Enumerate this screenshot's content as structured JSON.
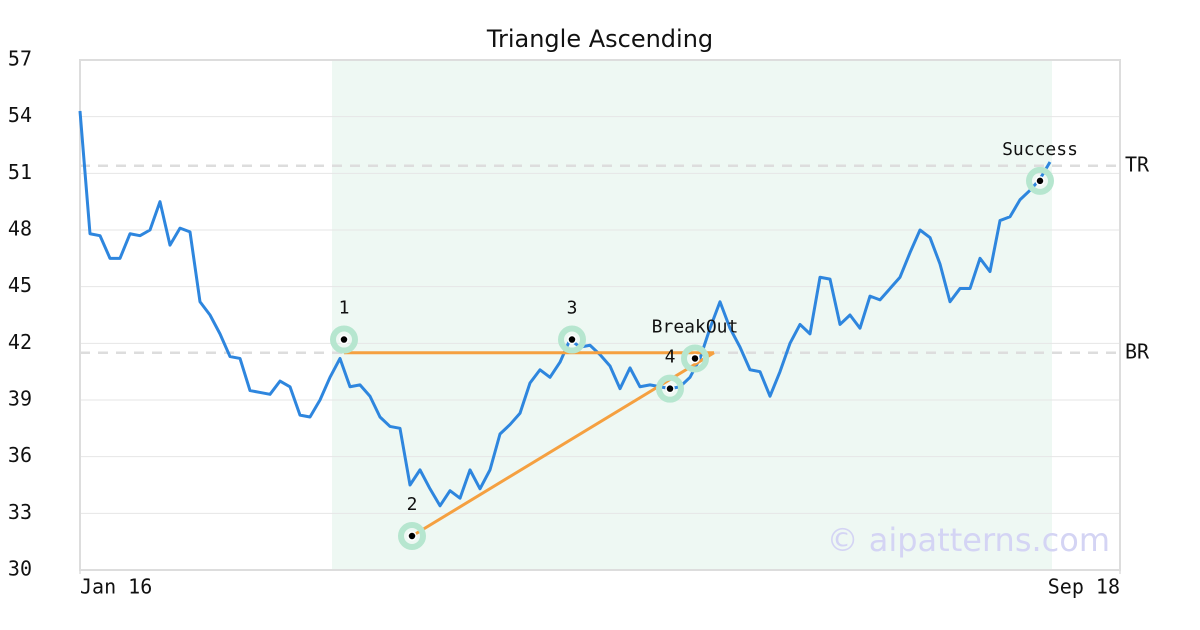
{
  "chart_data": {
    "type": "line",
    "title": "Triangle Ascending",
    "watermark": "© aipatterns.com",
    "series": [
      {
        "color": "#2e86de",
        "values": [
          54.3,
          47.8,
          47.7,
          46.5,
          46.5,
          47.8,
          47.7,
          48.0,
          49.5,
          47.2,
          48.1,
          47.9,
          44.2,
          43.5,
          42.5,
          41.3,
          41.2,
          39.5,
          39.4,
          39.3,
          40.0,
          39.7,
          38.2,
          38.1,
          39.0,
          40.2,
          41.2,
          39.7,
          39.8,
          39.2,
          38.1,
          37.6,
          37.5,
          34.5,
          35.3,
          34.3,
          33.4,
          34.2,
          33.8,
          35.3,
          34.3,
          35.3,
          37.2,
          37.7,
          38.3,
          39.9,
          40.6,
          40.2,
          41.0,
          42.2,
          41.8,
          41.9,
          41.4,
          40.8,
          39.6,
          40.7,
          39.7,
          39.8,
          39.7,
          39.6,
          39.7,
          40.2,
          41.2,
          42.8,
          44.2,
          42.8,
          41.8,
          40.6,
          40.5,
          39.2,
          40.5,
          42.0,
          43.0,
          42.5,
          45.5,
          45.4,
          43.0,
          43.5,
          42.8,
          44.5,
          44.3,
          44.9,
          45.5,
          46.8,
          48.0,
          47.6,
          46.2,
          44.2,
          44.9,
          44.9,
          46.5,
          45.8,
          48.5,
          48.7,
          49.6,
          50.1,
          50.7,
          51.6
        ]
      }
    ],
    "xlim": [
      0,
      104
    ],
    "xticks": [
      {
        "value": 0,
        "label": "Jan 16"
      },
      {
        "value": 104,
        "label": "Sep 18"
      }
    ],
    "ylim": [
      30,
      57
    ],
    "yticks": [
      30,
      33,
      36,
      39,
      42,
      45,
      48,
      51,
      54,
      57
    ],
    "grid": true,
    "region": {
      "x": [
        25.2,
        97.2
      ],
      "color": "#eef8f3"
    },
    "reference_lines": [
      {
        "label": "TR",
        "y": 51.4
      },
      {
        "label": "BR",
        "y": 41.5
      }
    ],
    "trendlines": {
      "color": "#f5a040",
      "lines": [
        {
          "x": [
            26.4,
            63.4
          ],
          "y": [
            41.5,
            41.5
          ]
        },
        {
          "x": [
            33.2,
            63.4
          ],
          "y": [
            31.8,
            41.5
          ]
        }
      ]
    },
    "annotations": [
      {
        "label": "1",
        "x": 26.4,
        "y": 42.2
      },
      {
        "label": "2",
        "x": 33.2,
        "y": 31.8
      },
      {
        "label": "3",
        "x": 49.2,
        "y": 42.2
      },
      {
        "label": "4",
        "x": 59.0,
        "y": 39.6
      },
      {
        "label": "BreakOut",
        "x": 61.5,
        "y": 41.2
      },
      {
        "label": "Success",
        "x": 96.0,
        "y": 50.6
      }
    ]
  }
}
